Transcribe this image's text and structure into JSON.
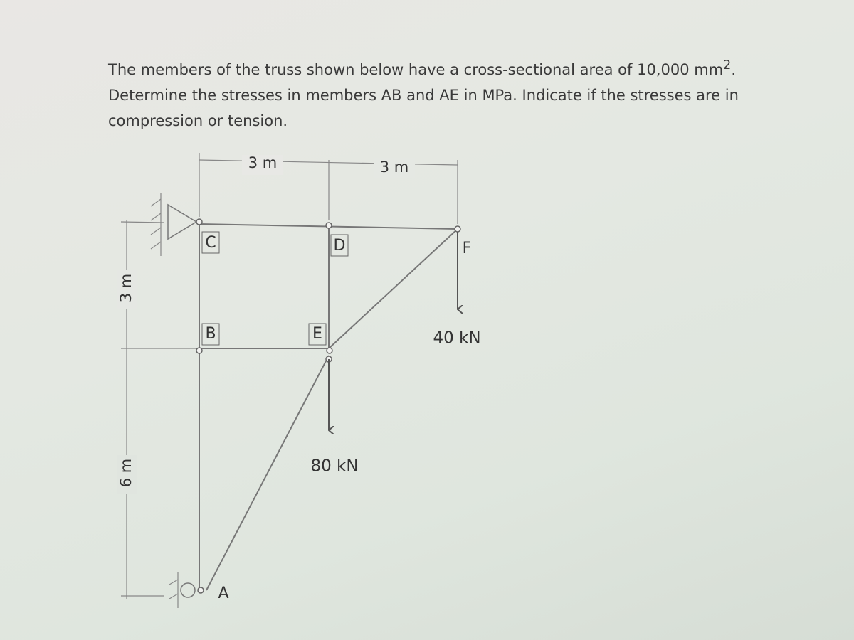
{
  "problem": {
    "text": "The members of the truss shown below have a cross-sectional area of 10,000 mm",
    "superscript": "2",
    "text_after": ". Determine the stresses in members AB and AE in MPa. Indicate if the stresses are in compression or tension."
  },
  "diagram": {
    "dimensions": {
      "top_left": "3 m",
      "top_right": "3 m",
      "left_upper": "3 m",
      "left_lower": "6 m"
    },
    "nodes": {
      "A": "A",
      "B": "B",
      "C": "C",
      "D": "D",
      "E": "E",
      "F": "F"
    },
    "loads": {
      "F": "40 kN",
      "E": "80 kN"
    }
  }
}
